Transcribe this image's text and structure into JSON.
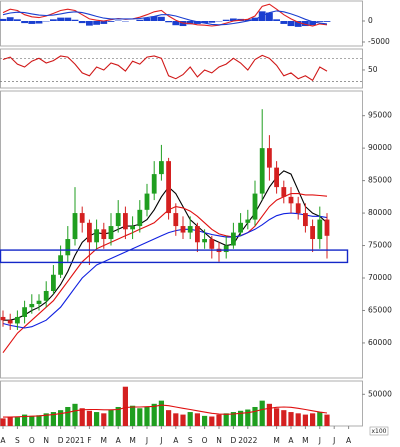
{
  "chart_data": [
    {
      "type": "macd",
      "yticks": [
        0,
        -5000
      ],
      "ylim": [
        -5950,
        4760
      ],
      "hist_color": "#1a3fd0",
      "histogram": [
        500,
        900,
        400,
        -500,
        -700,
        -600,
        -100,
        400,
        800,
        800,
        300,
        -500,
        -1100,
        -900,
        -700,
        -200,
        100,
        -100,
        0,
        300,
        700,
        1100,
        1000,
        -300,
        -1000,
        -1200,
        -800,
        -700,
        -500,
        -400,
        -100,
        300,
        600,
        500,
        400,
        800,
        2300,
        2000,
        400,
        -700,
        -1200,
        -1400,
        -1200,
        -1000,
        -200,
        -200
      ],
      "series": [
        {
          "color": "#e02020",
          "values": [
            2000,
            2800,
            2500,
            1500,
            1000,
            800,
            1200,
            1800,
            2500,
            2800,
            2500,
            1500,
            500,
            200,
            0,
            300,
            600,
            400,
            500,
            900,
            1500,
            2200,
            2500,
            1200,
            200,
            -500,
            -600,
            -900,
            -1000,
            -1200,
            -1000,
            -500,
            0,
            200,
            400,
            1200,
            3500,
            4000,
            2800,
            1500,
            500,
            -300,
            -800,
            -1200,
            -700,
            -900
          ]
        },
        {
          "color": "#1a3fd0",
          "values": [
            1500,
            1900,
            2100,
            2000,
            1700,
            1400,
            1300,
            1400,
            1700,
            2000,
            2200,
            2000,
            1600,
            1100,
            700,
            500,
            500,
            500,
            500,
            600,
            800,
            1100,
            1500,
            1500,
            1200,
            700,
            200,
            -200,
            -500,
            -800,
            -900,
            -800,
            -600,
            -300,
            0,
            400,
            1200,
            2000,
            2400,
            2200,
            1700,
            1100,
            400,
            -200,
            -500,
            -700
          ]
        }
      ]
    },
    {
      "type": "line",
      "yticks": [
        50
      ],
      "ylim": [
        19,
        86
      ],
      "levels": [
        30,
        70
      ],
      "series": [
        {
          "color": "#d01818",
          "values": [
            68,
            72,
            60,
            55,
            65,
            70,
            62,
            66,
            74,
            72,
            60,
            45,
            40,
            55,
            50,
            62,
            58,
            48,
            65,
            60,
            72,
            74,
            70,
            40,
            35,
            42,
            55,
            38,
            50,
            45,
            55,
            60,
            70,
            62,
            50,
            68,
            75,
            70,
            58,
            40,
            45,
            35,
            40,
            32,
            55,
            48
          ]
        }
      ]
    },
    {
      "type": "candlestick",
      "yticks": [
        95000,
        90000,
        85000,
        80000,
        75000,
        70000,
        65000,
        60000
      ],
      "ylim": [
        54600,
        98800
      ],
      "up_color": "#1f9e1f",
      "down_color": "#d42020",
      "open": [
        64000,
        63500,
        63000,
        64000,
        65500,
        66000,
        66500,
        68000,
        70500,
        73500,
        76000,
        80000,
        78500,
        75500,
        77500,
        76000,
        78000,
        80000,
        77500,
        78000,
        80500,
        83000,
        86000,
        88000,
        80000,
        78000,
        77000,
        78000,
        75500,
        76000,
        74500,
        74000,
        75000,
        77000,
        78500,
        79000,
        83000,
        90000,
        87000,
        84000,
        82500,
        81500,
        80000,
        78000,
        76000,
        79000
      ],
      "high": [
        65000,
        64500,
        65000,
        66500,
        67500,
        67500,
        69500,
        72000,
        75000,
        78000,
        84000,
        81000,
        79000,
        79000,
        78500,
        80000,
        82000,
        81000,
        79500,
        82000,
        84500,
        88000,
        90500,
        88500,
        81500,
        79500,
        79500,
        78500,
        77500,
        76500,
        75500,
        76500,
        78500,
        80000,
        80500,
        85000,
        96000,
        92000,
        88000,
        85000,
        84000,
        82500,
        81500,
        79000,
        81000,
        80000
      ],
      "low": [
        62500,
        62000,
        62000,
        63000,
        64500,
        65000,
        65500,
        67500,
        70000,
        72500,
        75000,
        77000,
        72000,
        74500,
        74500,
        75000,
        77000,
        76000,
        76000,
        77000,
        79500,
        82000,
        85000,
        79000,
        76500,
        76000,
        76000,
        74000,
        74500,
        73000,
        72500,
        73000,
        74500,
        76500,
        77500,
        78000,
        82000,
        85000,
        83000,
        81500,
        80000,
        79000,
        77000,
        74000,
        74500,
        73000
      ],
      "close": [
        63500,
        63000,
        64000,
        65500,
        66000,
        66500,
        68000,
        70500,
        73500,
        76000,
        80000,
        78500,
        75500,
        77500,
        76000,
        78000,
        80000,
        77500,
        78000,
        80500,
        83000,
        86000,
        88000,
        80000,
        78000,
        77000,
        78000,
        75500,
        76000,
        74500,
        74000,
        75000,
        77000,
        78500,
        79000,
        83000,
        90000,
        87000,
        84000,
        82500,
        81500,
        80000,
        78000,
        76000,
        79000,
        76500
      ],
      "zone": [
        72400,
        74300
      ],
      "zone_color": "#1428c8",
      "series": [
        {
          "color": "#000000",
          "values": [
            63500,
            63500,
            63800,
            64300,
            65000,
            65500,
            66300,
            67500,
            69000,
            71000,
            73500,
            75500,
            76500,
            77000,
            76800,
            77000,
            77500,
            78000,
            78000,
            78300,
            79000,
            80500,
            82500,
            84000,
            83000,
            81000,
            79000,
            78000,
            77000,
            76000,
            75500,
            75000,
            75200,
            77000,
            78500,
            80000,
            82000,
            84000,
            85500,
            86500,
            86000,
            83500,
            81000,
            80000,
            79500,
            78500
          ]
        },
        {
          "color": "#e01010",
          "values": [
            58500,
            60000,
            61500,
            62500,
            63500,
            64500,
            65500,
            66500,
            68000,
            69500,
            71000,
            72500,
            73500,
            74500,
            75000,
            75500,
            76000,
            76500,
            77000,
            77500,
            78000,
            78500,
            79500,
            80500,
            81000,
            80800,
            80300,
            79500,
            78500,
            77500,
            76800,
            76500,
            76300,
            76500,
            77000,
            78000,
            79500,
            81000,
            82000,
            82500,
            83000,
            83000,
            82800,
            82800,
            82700,
            82600
          ]
        },
        {
          "color": "#1020e0",
          "values": [
            63000,
            62700,
            62500,
            62300,
            62500,
            63000,
            63500,
            64500,
            65500,
            67000,
            68500,
            70000,
            71000,
            72000,
            72500,
            73000,
            73500,
            74000,
            74500,
            75000,
            75500,
            76000,
            76500,
            77000,
            77300,
            77500,
            77500,
            77300,
            77000,
            76700,
            76500,
            76300,
            76300,
            76500,
            77000,
            77500,
            78200,
            79000,
            79600,
            79900,
            80000,
            79900,
            79700,
            79500,
            79500,
            79300
          ]
        }
      ]
    },
    {
      "type": "bar",
      "yticks": [
        50000
      ],
      "ylim": [
        0,
        71000
      ],
      "unit_label": "x100",
      "categories": [
        "A",
        null,
        "S",
        null,
        "O",
        null,
        "N",
        null,
        "D",
        null,
        "2021",
        null,
        "F",
        null,
        "M",
        null,
        "A",
        null,
        "M",
        null,
        "J",
        null,
        "J",
        null,
        "A",
        null,
        "S",
        null,
        "O",
        null,
        "N",
        null,
        "D",
        null,
        "2022",
        null,
        null,
        null,
        "M",
        null,
        "A",
        null,
        "M",
        null,
        "J",
        null,
        "J",
        null,
        "A",
        null
      ],
      "up_color": "#1f9e1f",
      "down_color": "#d42020",
      "values": [
        12000,
        15000,
        14000,
        18000,
        16000,
        17000,
        20000,
        22000,
        25000,
        30000,
        35000,
        28000,
        24000,
        22000,
        20000,
        26000,
        30000,
        62000,
        32000,
        28000,
        30000,
        35000,
        40000,
        25000,
        20000,
        18000,
        22000,
        20000,
        16000,
        15000,
        18000,
        20000,
        22000,
        24000,
        26000,
        30000,
        40000,
        35000,
        28000,
        25000,
        22000,
        20000,
        18000,
        20000,
        22000,
        18000,
        null,
        null,
        null,
        null
      ],
      "series": [
        {
          "color": "#e01010",
          "values": [
            14000,
            14000,
            14500,
            15000,
            15500,
            16000,
            17000,
            18000,
            19500,
            21500,
            24000,
            25500,
            26000,
            26000,
            25500,
            25500,
            26000,
            29000,
            30000,
            30000,
            30500,
            31000,
            33000,
            32000,
            30000,
            28000,
            26000,
            24000,
            22000,
            20000,
            19000,
            18500,
            19000,
            20000,
            21000,
            23000,
            26000,
            28000,
            29500,
            30000,
            29500,
            28000,
            26000,
            24000,
            22000,
            20500,
            null,
            null,
            null,
            null
          ]
        }
      ]
    }
  ]
}
